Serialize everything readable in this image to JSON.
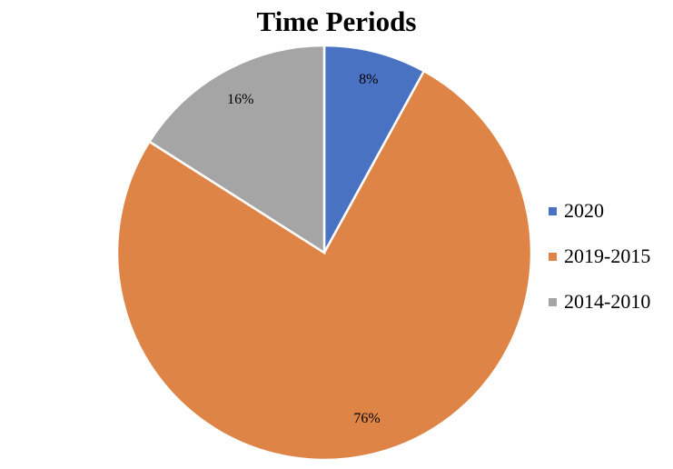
{
  "chart_data": {
    "type": "pie",
    "title": "Time Periods",
    "categories": [
      "2020",
      "2019-2015",
      "2014-2010"
    ],
    "values": [
      8,
      76,
      16
    ],
    "labels": [
      "8%",
      "76%",
      "16%"
    ],
    "colors": [
      "#4a72c3",
      "#df8447",
      "#a5a5a5"
    ],
    "legend": "right"
  }
}
